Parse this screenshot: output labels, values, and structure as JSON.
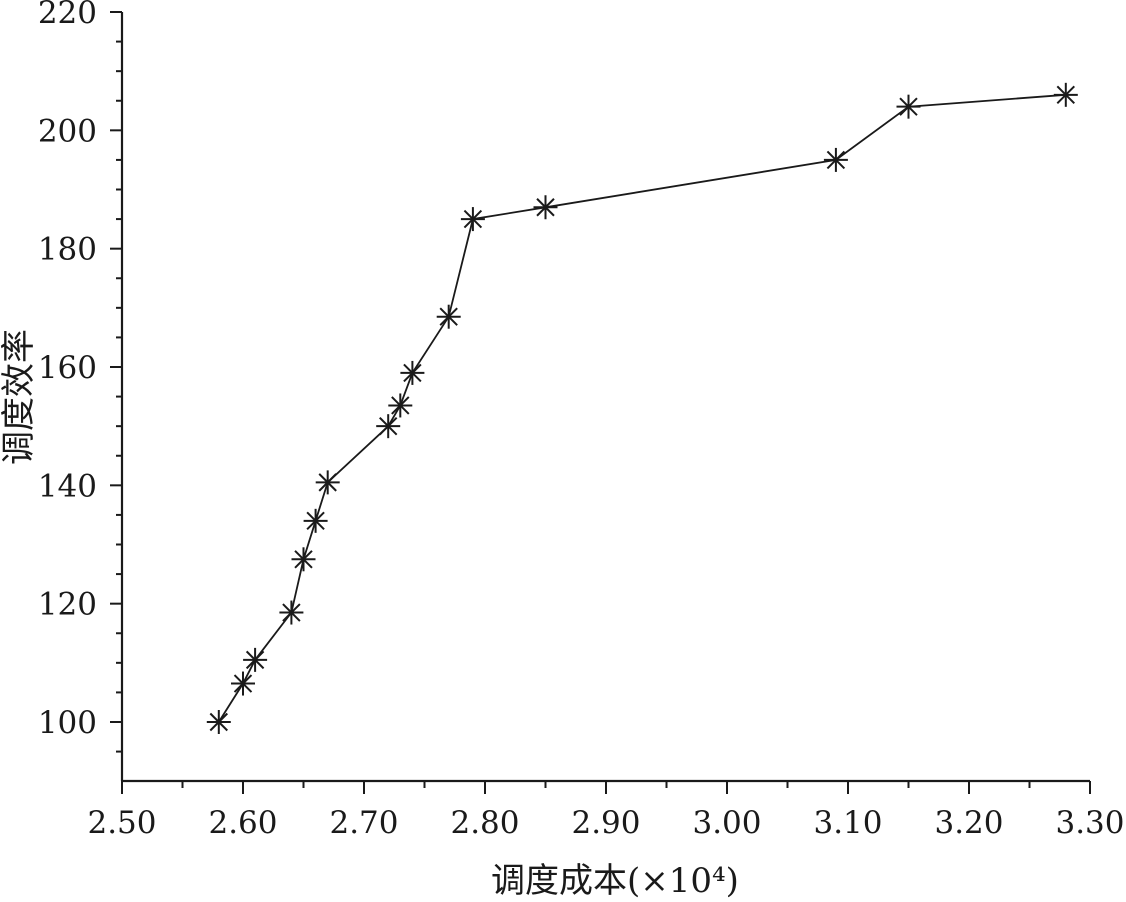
{
  "chart_data": {
    "type": "line",
    "title": "",
    "xlabel": "调度成本(×10⁴)",
    "ylabel": "调度效率",
    "xlim": [
      2.5,
      3.3
    ],
    "ylim": [
      90,
      220
    ],
    "x_ticks": [
      2.5,
      2.6,
      2.7,
      2.8,
      2.9,
      3.0,
      3.1,
      3.2,
      3.3
    ],
    "x_tick_labels": [
      "2.50",
      "2.60",
      "2.70",
      "2.80",
      "2.90",
      "3.00",
      "3.10",
      "3.20",
      "3.30"
    ],
    "y_ticks": [
      100,
      120,
      140,
      160,
      180,
      200,
      220
    ],
    "y_tick_labels": [
      "100",
      "120",
      "140",
      "160",
      "180",
      "200",
      "220"
    ],
    "marker": "asterisk",
    "grid": false,
    "series": [
      {
        "x": [
          2.58,
          2.6,
          2.61,
          2.64,
          2.65,
          2.66,
          2.67,
          2.72,
          2.73,
          2.74,
          2.77,
          2.79,
          2.85,
          3.09,
          3.15,
          3.28
        ],
        "y": [
          100,
          106.5,
          110.5,
          118.5,
          127.5,
          134,
          140.5,
          150,
          153.5,
          159,
          168.5,
          185,
          187,
          195,
          204,
          206
        ]
      }
    ]
  }
}
